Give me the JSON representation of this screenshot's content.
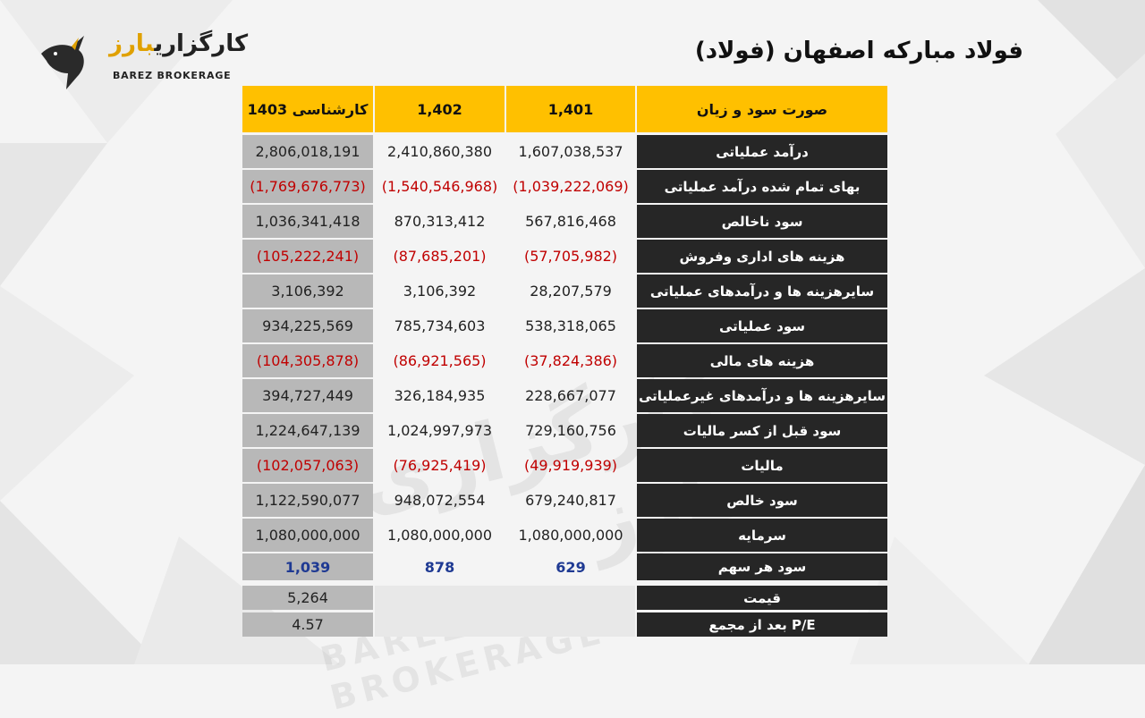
{
  "logo": {
    "name_fa_prefix": "کارگزاری",
    "name_fa_accent": "بارز",
    "name_en": "BAREZ BROKERAGE"
  },
  "title": "فولاد مبارکه اصفهان (فولاد)",
  "watermark": {
    "fa": "کارگزاری بارز",
    "en": "BAREZ BROKERAGE"
  },
  "table": {
    "header": {
      "label": "صورت سود و زیان",
      "y1401": "1,401",
      "y1402": "1,402",
      "y1403": "کارشناسی 1403"
    },
    "rows": [
      {
        "label": "درآمد عملیاتی",
        "y1401": "1,607,038,537",
        "y1402": "2,410,860,380",
        "y1403": "2,806,018,191",
        "negative": false
      },
      {
        "label": "بهای تمام شده درآمد عملیاتی",
        "y1401": "(1,039,222,069)",
        "y1402": "(1,540,546,968)",
        "y1403": "(1,769,676,773)",
        "negative": true
      },
      {
        "label": "سود ناخالص",
        "y1401": "567,816,468",
        "y1402": "870,313,412",
        "y1403": "1,036,341,418",
        "negative": false
      },
      {
        "label": "هزینه های اداری وفروش",
        "y1401": "(57,705,982)",
        "y1402": "(87,685,201)",
        "y1403": "(105,222,241)",
        "negative": true
      },
      {
        "label": "سایرهزینه ها و درآمدهای عملیاتی",
        "y1401": "28,207,579",
        "y1402": "3,106,392",
        "y1403": "3,106,392",
        "negative": false
      },
      {
        "label": "سود عملیاتی",
        "y1401": "538,318,065",
        "y1402": "785,734,603",
        "y1403": "934,225,569",
        "negative": false
      },
      {
        "label": "هزینه های مالی",
        "y1401": "(37,824,386)",
        "y1402": "(86,921,565)",
        "y1403": "(104,305,878)",
        "negative": true
      },
      {
        "label": "سایرهزینه ها و درآمدهای غیرعملیاتی",
        "y1401": "228,667,077",
        "y1402": "326,184,935",
        "y1403": "394,727,449",
        "negative": false
      },
      {
        "label": "سود قبل از کسر مالیات",
        "y1401": "729,160,756",
        "y1402": "1,024,997,973",
        "y1403": "1,224,647,139",
        "negative": false
      },
      {
        "label": "مالیات",
        "y1401": "(49,919,939)",
        "y1402": "(76,925,419)",
        "y1403": "(102,057,063)",
        "negative": true
      },
      {
        "label": "سود خالص",
        "y1401": "679,240,817",
        "y1402": "948,072,554",
        "y1403": "1,122,590,077",
        "negative": false
      },
      {
        "label": "سرمایه",
        "y1401": "1,080,000,000",
        "y1402": "1,080,000,000",
        "y1403": "1,080,000,000",
        "negative": false
      },
      {
        "label": "سود هر سهم",
        "y1401": "629",
        "y1402": "878",
        "y1403": "1,039",
        "negative": false,
        "eps": true
      }
    ],
    "extra": [
      {
        "label": "قیمت",
        "y1403": "5,264"
      },
      {
        "label": "P/E بعد از مجمع",
        "y1403": "4.57"
      }
    ]
  }
}
